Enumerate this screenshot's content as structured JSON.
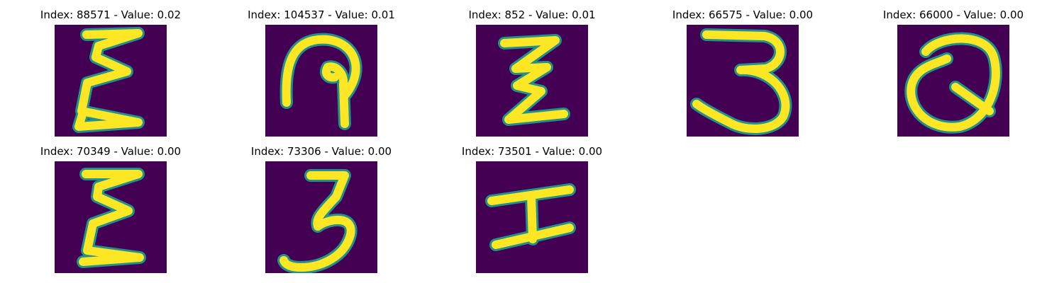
{
  "colormap": {
    "background": "#440154",
    "mid": "#21918c",
    "high": "#fde725"
  },
  "panels": [
    {
      "title": "Index: 88571 - Value: 0.02",
      "glyph_icon": "handwritten-E-like-icon"
    },
    {
      "title": "Index: 104537 - Value: 0.01",
      "glyph_icon": "handwritten-loop-P-like-icon"
    },
    {
      "title": "Index: 852 - Value: 0.01",
      "glyph_icon": "handwritten-Z-like-icon"
    },
    {
      "title": "Index: 66575 - Value: 0.00",
      "glyph_icon": "handwritten-3-icon"
    },
    {
      "title": "Index: 66000 - Value: 0.00",
      "glyph_icon": "handwritten-Q-like-icon"
    },
    {
      "title": "Index: 70349 - Value: 0.00",
      "glyph_icon": "handwritten-E-like-icon"
    },
    {
      "title": "Index: 73306 - Value: 0.00",
      "glyph_icon": "handwritten-3-icon"
    },
    {
      "title": "Index: 73501 - Value: 0.00",
      "glyph_icon": "handwritten-I-like-icon"
    }
  ]
}
